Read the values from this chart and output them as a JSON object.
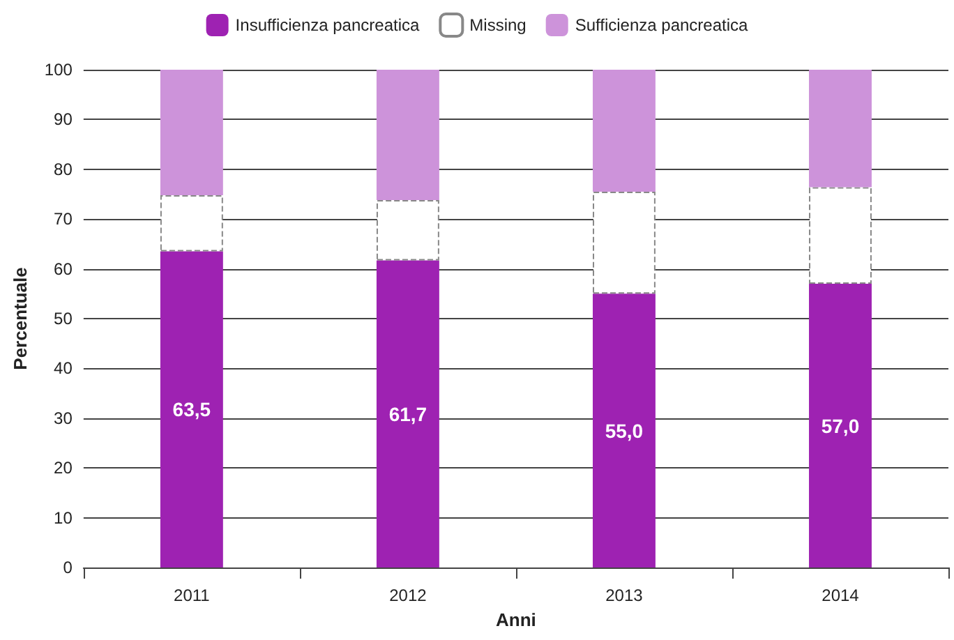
{
  "chart_data": {
    "type": "bar",
    "stacked": true,
    "xlabel": "Anni",
    "ylabel": "Percentuale",
    "categories": [
      "2011",
      "2012",
      "2013",
      "2014"
    ],
    "series": [
      {
        "name": "Insufficienza pancreatica",
        "color": "#9e22b2",
        "values": [
          63.5,
          61.7,
          55.0,
          57.0
        ],
        "value_labels": [
          "63,5",
          "61,7",
          "55,0",
          "57,0"
        ]
      },
      {
        "name": "Missing",
        "color": "#ffffff",
        "line_style": "dashed",
        "values": [
          11.3,
          12.1,
          20.5,
          19.4
        ]
      },
      {
        "name": "Sufficienza pancreatica",
        "color": "#cd93da",
        "values": [
          25.2,
          26.2,
          24.5,
          23.6
        ]
      }
    ],
    "ylim": [
      0,
      100
    ],
    "yticks": [
      0,
      10,
      20,
      30,
      40,
      50,
      60,
      70,
      80,
      90,
      100
    ],
    "grid": "y",
    "legend": "top"
  }
}
